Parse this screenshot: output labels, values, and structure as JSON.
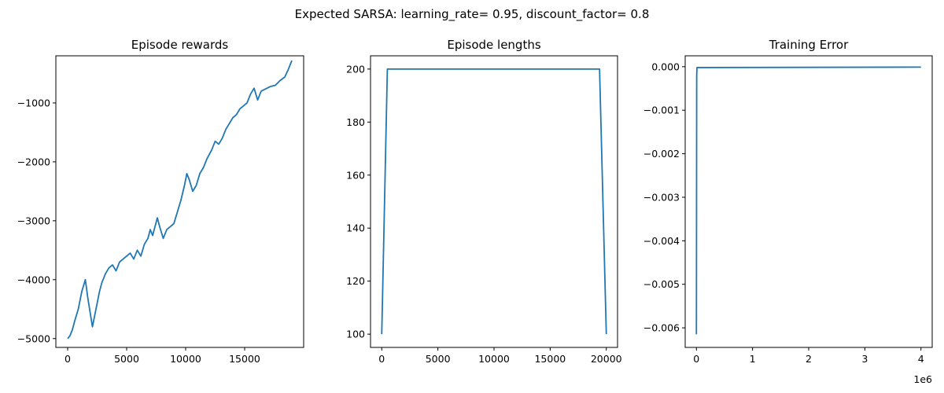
{
  "suptitle": "Expected SARSA: learning_rate= 0.95, discount_factor= 0.8",
  "chart_data": [
    {
      "type": "line",
      "title": "Episode rewards",
      "xlabel": "",
      "ylabel": "",
      "xlim": [
        -1000,
        20000
      ],
      "ylim": [
        -5150,
        -200
      ],
      "xticks": [
        0,
        5000,
        10000,
        15000
      ],
      "xtick_labels": [
        "0",
        "5000",
        "10000",
        "15000"
      ],
      "yticks": [
        -5000,
        -4000,
        -3000,
        -2000,
        -1000
      ],
      "ytick_labels": [
        "−5000",
        "−4000",
        "−3000",
        "−2000",
        "−1000"
      ],
      "grid": false,
      "series_color": "#1f77b4",
      "series": [
        {
          "x": [
            0,
            200,
            400,
            600,
            900,
            1200,
            1500,
            1700,
            1900,
            2100,
            2300,
            2500,
            2700,
            2900,
            3200,
            3500,
            3800,
            4100,
            4400,
            4700,
            5000,
            5300,
            5600,
            5900,
            6200,
            6500,
            6800,
            7000,
            7200,
            7400,
            7600,
            7800,
            8100,
            8400,
            8700,
            9000,
            9300,
            9600,
            9900,
            10100,
            10300,
            10600,
            10900,
            11200,
            11500,
            11800,
            12200,
            12500,
            12800,
            13100,
            13400,
            13700,
            14000,
            14300,
            14600,
            14900,
            15200,
            15500,
            15800,
            16100,
            16400,
            16800,
            17200,
            17600,
            18000,
            18400,
            18700,
            19000
          ],
          "y": [
            -5000,
            -4950,
            -4850,
            -4700,
            -4500,
            -4200,
            -4000,
            -4300,
            -4550,
            -4800,
            -4600,
            -4400,
            -4200,
            -4050,
            -3900,
            -3800,
            -3750,
            -3850,
            -3700,
            -3650,
            -3600,
            -3550,
            -3650,
            -3500,
            -3600,
            -3400,
            -3300,
            -3150,
            -3250,
            -3100,
            -2950,
            -3100,
            -3300,
            -3150,
            -3100,
            -3050,
            -2850,
            -2650,
            -2400,
            -2200,
            -2300,
            -2500,
            -2400,
            -2200,
            -2100,
            -1950,
            -1800,
            -1650,
            -1700,
            -1600,
            -1450,
            -1350,
            -1250,
            -1200,
            -1100,
            -1050,
            -1000,
            -850,
            -750,
            -950,
            -800,
            -760,
            -720,
            -700,
            -620,
            -560,
            -430,
            -280
          ]
        }
      ]
    },
    {
      "type": "line",
      "title": "Episode lengths",
      "xlabel": "",
      "ylabel": "",
      "xlim": [
        -1000,
        21000
      ],
      "ylim": [
        95,
        205
      ],
      "xticks": [
        0,
        5000,
        10000,
        15000,
        20000
      ],
      "xtick_labels": [
        "0",
        "5000",
        "10000",
        "15000",
        "20000"
      ],
      "yticks": [
        100,
        120,
        140,
        160,
        180,
        200
      ],
      "ytick_labels": [
        "100",
        "120",
        "140",
        "160",
        "180",
        "200"
      ],
      "grid": false,
      "series_color": "#1f77b4",
      "series": [
        {
          "x": [
            0,
            500,
            19400,
            20000
          ],
          "y": [
            100,
            200,
            200,
            100
          ]
        }
      ]
    },
    {
      "type": "line",
      "title": "Training Error",
      "xlabel": "",
      "ylabel": "",
      "x_offset_label": "1e6",
      "xlim": [
        -0.2,
        4.2
      ],
      "ylim": [
        -0.00645,
        0.00025
      ],
      "xticks": [
        0,
        1,
        2,
        3,
        4
      ],
      "xtick_labels": [
        "0",
        "1",
        "2",
        "3",
        "4"
      ],
      "yticks": [
        0.0,
        -0.001,
        -0.002,
        -0.003,
        -0.004,
        -0.005,
        -0.006
      ],
      "ytick_labels": [
        "0.000",
        "−0.001",
        "−0.002",
        "−0.003",
        "−0.004",
        "−0.005",
        "−0.006"
      ],
      "grid": false,
      "series_color": "#1f77b4",
      "series": [
        {
          "x": [
            0,
            0.005,
            0.01,
            4.0
          ],
          "y": [
            -0.00615,
            -0.0002,
            -2e-05,
            -1e-05
          ]
        }
      ]
    }
  ]
}
